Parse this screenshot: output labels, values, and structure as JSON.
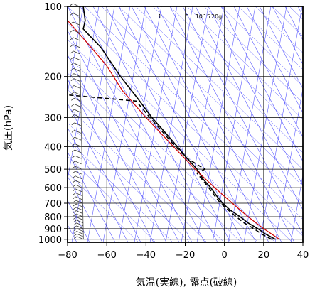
{
  "chart_data": {
    "type": "skew-t",
    "xlabel": "気温(実線), 露点(破線)",
    "ylabel": "気圧(hPa)",
    "xlim": [
      -80,
      40
    ],
    "ylim": [
      1030,
      100
    ],
    "y_scale": "log",
    "x_ticks": [
      -80,
      -60,
      -40,
      -20,
      0,
      20,
      40
    ],
    "y_ticks": [
      100,
      200,
      300,
      400,
      500,
      600,
      700,
      800,
      900,
      1000
    ],
    "mixing_ratio_labels": [
      "1",
      "5",
      "10",
      "15",
      "20g"
    ],
    "grid": true,
    "colors": {
      "temperature": "#000000",
      "dewpoint": "#000000",
      "parcel": "#d00000",
      "guide_lines": "#5a5aff",
      "grid": "#000000"
    },
    "series": [
      {
        "name": "temperature",
        "style": "solid",
        "points": [
          [
            26,
            1000
          ],
          [
            21,
            950
          ],
          [
            17,
            900
          ],
          [
            12,
            850
          ],
          [
            8,
            800
          ],
          [
            3,
            750
          ],
          [
            -1,
            700
          ],
          [
            -4,
            650
          ],
          [
            -7,
            600
          ],
          [
            -11,
            550
          ],
          [
            -14,
            500
          ],
          [
            -19,
            450
          ],
          [
            -24,
            400
          ],
          [
            -30,
            350
          ],
          [
            -37,
            300
          ],
          [
            -44,
            250
          ],
          [
            -53,
            200
          ],
          [
            -63,
            150
          ],
          [
            -72,
            125
          ],
          [
            -71,
            115
          ],
          [
            -72,
            100
          ]
        ]
      },
      {
        "name": "dewpoint",
        "style": "dashed",
        "points": [
          [
            24,
            1000
          ],
          [
            19,
            950
          ],
          [
            15,
            900
          ],
          [
            10,
            850
          ],
          [
            6,
            800
          ],
          [
            2,
            750
          ],
          [
            -2,
            700
          ],
          [
            -5,
            650
          ],
          [
            -8,
            600
          ],
          [
            -14,
            520
          ],
          [
            -10,
            500
          ],
          [
            -19,
            450
          ],
          [
            -25,
            400
          ],
          [
            -31,
            350
          ],
          [
            -38,
            300
          ],
          [
            -45,
            255
          ],
          [
            -80,
            240
          ]
        ]
      },
      {
        "name": "parcel",
        "style": "solid",
        "points": [
          [
            28,
            1000
          ],
          [
            20,
            900
          ],
          [
            12,
            800
          ],
          [
            4,
            700
          ],
          [
            -5,
            600
          ],
          [
            -15,
            500
          ],
          [
            -26,
            400
          ],
          [
            -40,
            300
          ],
          [
            -52,
            230
          ],
          [
            -60,
            180
          ],
          [
            -68,
            150
          ],
          [
            -78,
            120
          ],
          [
            -80,
            115
          ]
        ]
      }
    ],
    "wind_barbs": {
      "x": -73,
      "levels": [
        1000,
        975,
        950,
        925,
        900,
        875,
        850,
        825,
        800,
        775,
        750,
        725,
        700,
        675,
        650,
        625,
        600,
        575,
        550,
        525,
        500,
        475,
        450,
        425,
        400,
        375,
        350,
        325,
        300,
        285,
        270,
        255,
        240,
        225,
        210,
        200,
        190,
        180,
        170,
        160,
        150,
        140,
        130,
        120,
        110,
        100
      ]
    }
  }
}
